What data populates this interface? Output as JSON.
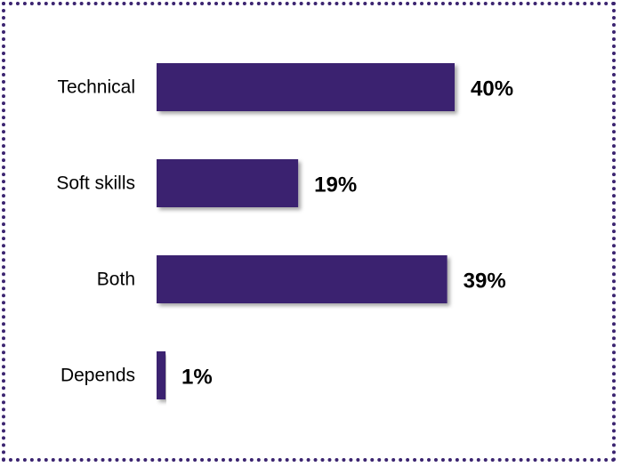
{
  "chart_data": {
    "type": "bar",
    "orientation": "horizontal",
    "categories": [
      "Technical",
      "Soft skills",
      "Both",
      "Depends"
    ],
    "values": [
      40,
      19,
      39,
      1
    ],
    "value_labels": [
      "40%",
      "19%",
      "39%",
      "1%"
    ],
    "title": "",
    "xlabel": "",
    "ylabel": "",
    "xlim": [
      0,
      40
    ],
    "grid": false,
    "legend": "none"
  },
  "colors": {
    "bar": "#3b2470",
    "border": "#3b2470",
    "text": "#000000"
  }
}
